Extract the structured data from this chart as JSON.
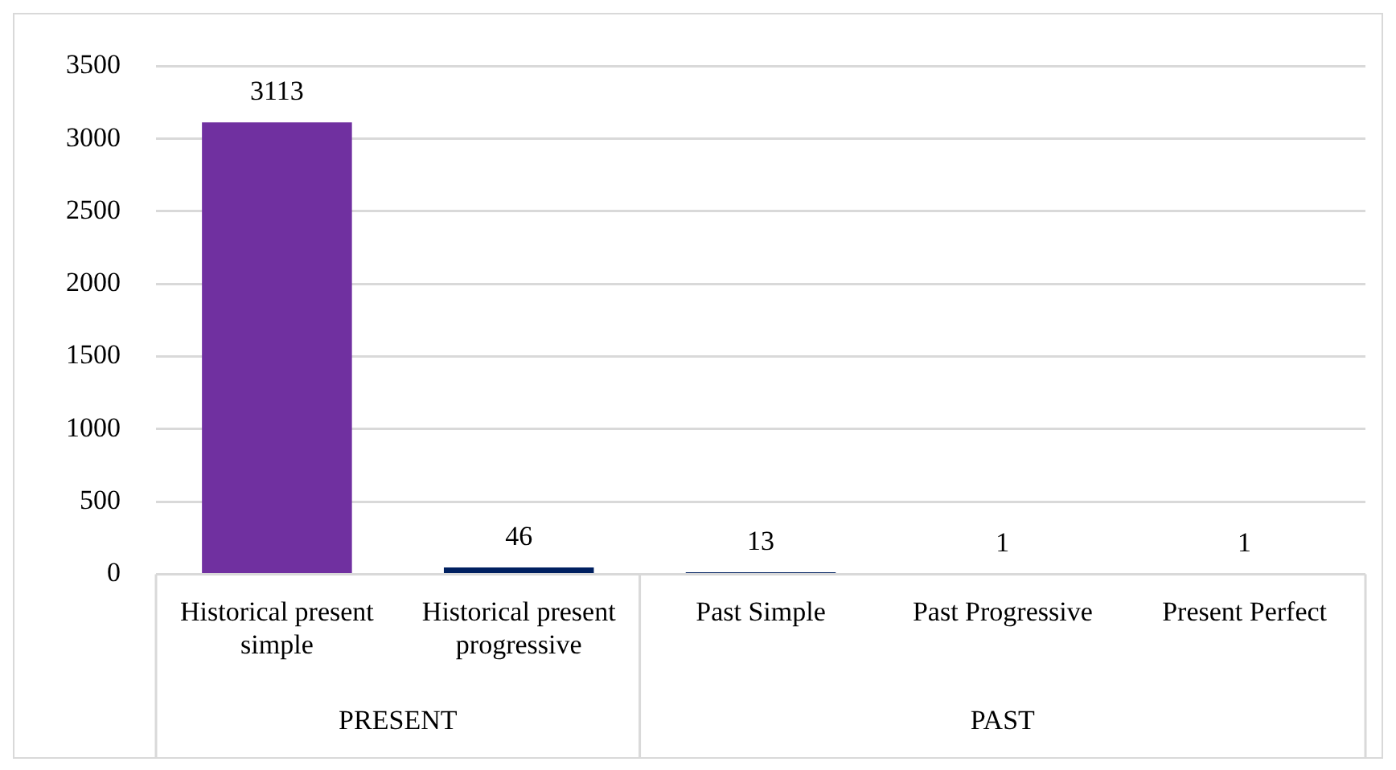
{
  "chart_data": {
    "type": "bar",
    "categories": [
      "Historical present simple",
      "Historical present progressive",
      "Past Simple",
      "Past Progressive",
      "Present Perfect"
    ],
    "values": [
      3113,
      46,
      13,
      1,
      1
    ],
    "colors": [
      "#7030a0",
      "#002060",
      "#002060",
      "#002060",
      "#002060"
    ],
    "ylim": [
      0,
      3500
    ],
    "yticks": [
      0,
      500,
      1000,
      1500,
      2000,
      2500,
      3000,
      3500
    ],
    "grid": "y",
    "data_labels": true,
    "annotations": [
      "PRESENT",
      "PAST"
    ]
  }
}
